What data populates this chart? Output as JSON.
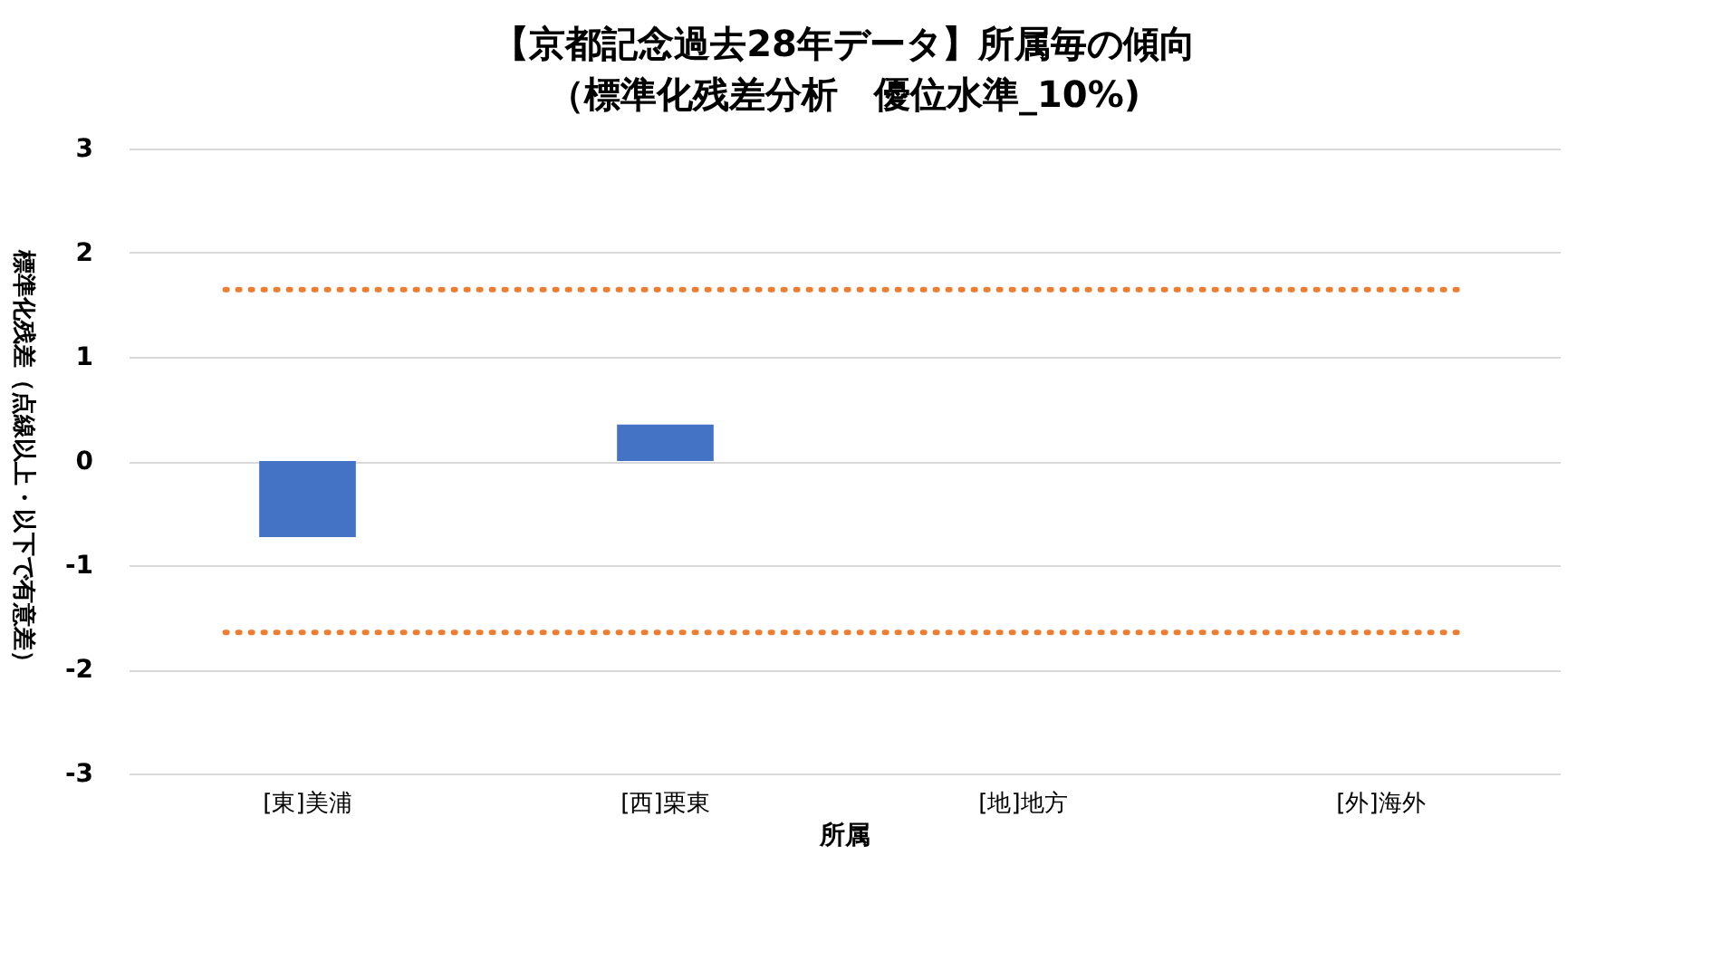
{
  "chart_data": {
    "type": "bar",
    "title": "【京都記念過去28年データ】所属毎の傾向",
    "subtitle": "（標準化残差分析　優位水準_10%)",
    "xlabel": "所属",
    "ylabel": "標準化残差（点線以上・以下で有意差）",
    "categories": [
      "[東]美浦",
      "[西]栗東",
      "[地]地方",
      "[外]海外"
    ],
    "values": [
      -0.73,
      0.35,
      0,
      0
    ],
    "color": "#4472c4",
    "ylim": [
      -3,
      3
    ],
    "yticks": [
      -3,
      -2,
      -1,
      0,
      1,
      2,
      3
    ],
    "grid": "y",
    "ref_lines": [
      {
        "axis": "y",
        "value": 1.645,
        "color": "#ed7d31",
        "line_style": "dotted"
      },
      {
        "axis": "y",
        "value": -1.645,
        "color": "#ed7d31",
        "line_style": "dotted"
      }
    ]
  }
}
